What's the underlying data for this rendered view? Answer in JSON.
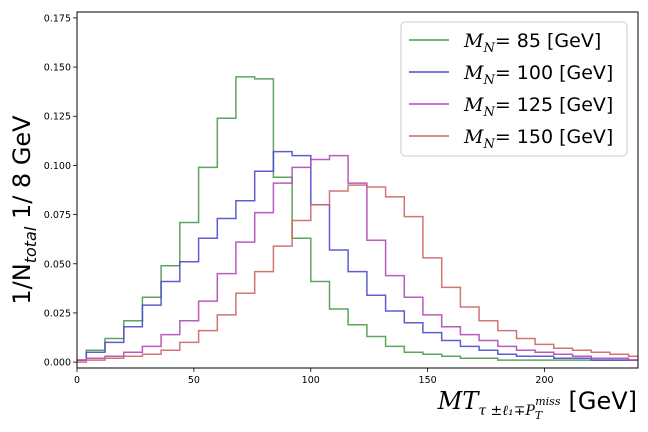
{
  "chart_data": {
    "type": "line",
    "subtype": "step-histogram",
    "title": "",
    "xlabel_parts": {
      "main": "MT",
      "sub": "τ ±ℓ₁∓P",
      "subsup": "miss",
      "subsub": "T",
      "unit": "[GeV]"
    },
    "ylabel_parts": {
      "main": "1/N",
      "sub": "total",
      "rest": " 1/ 8 GeV"
    },
    "xlim": [
      0,
      240
    ],
    "ylim": [
      -0.003,
      0.178
    ],
    "xticks": [
      0,
      50,
      100,
      150,
      200
    ],
    "xtick_labels": [
      "0",
      "50",
      "100",
      "150",
      "200"
    ],
    "yticks": [
      0.0,
      0.025,
      0.05,
      0.075,
      0.1,
      0.125,
      0.15,
      0.175
    ],
    "ytick_labels": [
      "0.000",
      "0.025",
      "0.050",
      "0.075",
      "0.100",
      "0.125",
      "0.150",
      "0.175"
    ],
    "grid": false,
    "legend_position": "top-right",
    "bin_edges": [
      0,
      4,
      12,
      20,
      28,
      36,
      44,
      52,
      60,
      68,
      76,
      84,
      92,
      100,
      108,
      116,
      124,
      132,
      140,
      148,
      156,
      164,
      172,
      180,
      188,
      196,
      204,
      212,
      220,
      228,
      236,
      240
    ],
    "series": [
      {
        "name_main": "M",
        "name_sub": "N",
        "name_rest": "=  85  [GeV]",
        "color": "#4c9a4c",
        "values": [
          0.001,
          0.006,
          0.012,
          0.021,
          0.033,
          0.049,
          0.071,
          0.099,
          0.124,
          0.145,
          0.144,
          0.094,
          0.063,
          0.041,
          0.027,
          0.019,
          0.013,
          0.008,
          0.005,
          0.004,
          0.003,
          0.002,
          0.002,
          0.001,
          0.001,
          0.001,
          0.001,
          0.001,
          0.001,
          0.001,
          0.001
        ]
      },
      {
        "name_main": "M",
        "name_sub": "N",
        "name_rest": "= 100 [GeV]",
        "color": "#4b4bcc",
        "values": [
          0.001,
          0.005,
          0.01,
          0.018,
          0.029,
          0.041,
          0.051,
          0.063,
          0.073,
          0.082,
          0.097,
          0.107,
          0.105,
          0.08,
          0.057,
          0.046,
          0.034,
          0.026,
          0.02,
          0.015,
          0.011,
          0.008,
          0.006,
          0.004,
          0.003,
          0.003,
          0.002,
          0.002,
          0.001,
          0.001,
          0.001
        ]
      },
      {
        "name_main": "M",
        "name_sub": "N",
        "name_rest": "= 125 [GeV]",
        "color": "#b04ab8",
        "values": [
          0.001,
          0.002,
          0.003,
          0.005,
          0.008,
          0.014,
          0.021,
          0.031,
          0.045,
          0.061,
          0.076,
          0.091,
          0.099,
          0.103,
          0.105,
          0.091,
          0.062,
          0.044,
          0.033,
          0.024,
          0.018,
          0.014,
          0.011,
          0.008,
          0.006,
          0.005,
          0.004,
          0.003,
          0.002,
          0.002,
          0.001
        ]
      },
      {
        "name_main": "M",
        "name_sub": "N",
        "name_rest": "= 150 [GeV]",
        "color": "#cc6666",
        "values": [
          0.0,
          0.001,
          0.002,
          0.003,
          0.004,
          0.006,
          0.01,
          0.016,
          0.024,
          0.035,
          0.046,
          0.059,
          0.072,
          0.08,
          0.087,
          0.09,
          0.089,
          0.084,
          0.074,
          0.053,
          0.038,
          0.028,
          0.021,
          0.016,
          0.012,
          0.009,
          0.007,
          0.006,
          0.005,
          0.004,
          0.003
        ]
      }
    ]
  }
}
